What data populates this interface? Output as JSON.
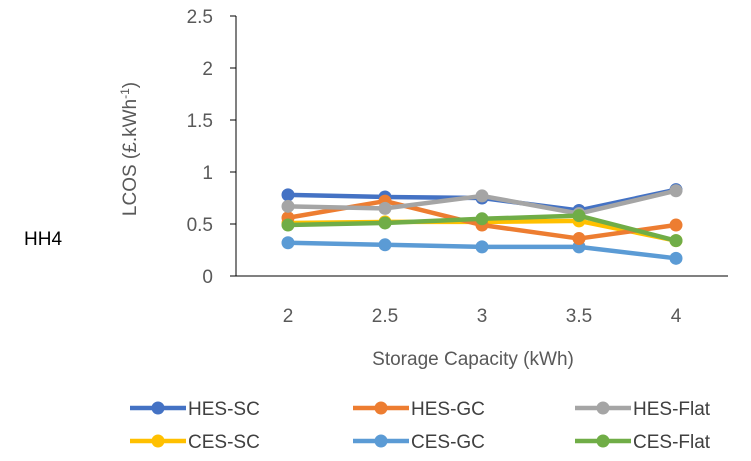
{
  "panel_label": "HH4",
  "chart_data": {
    "type": "line",
    "x": [
      2,
      2.5,
      3,
      3.5,
      4
    ],
    "x_tick_labels": [
      "2",
      "2.5",
      "3",
      "3.5",
      "4"
    ],
    "y_tick_labels": [
      "0",
      "0.5",
      "1",
      "1.5",
      "2",
      "2.5"
    ],
    "ylim": [
      0,
      2.5
    ],
    "xlabel": "Storage Capacity (kWh)",
    "ylabel": "LCOS (£.kWh",
    "ylabel_superscript": "-1",
    "ylabel_suffix": ")",
    "grid": false,
    "legend_position": "bottom",
    "series": [
      {
        "name": "HES-SC",
        "color": "#4472C4",
        "values": [
          0.78,
          0.76,
          0.75,
          0.63,
          0.83
        ]
      },
      {
        "name": "HES-GC",
        "color": "#ED7D31",
        "values": [
          0.56,
          0.72,
          0.49,
          0.36,
          0.49
        ]
      },
      {
        "name": "HES-Flat",
        "color": "#A5A5A5",
        "values": [
          0.67,
          0.65,
          0.77,
          0.6,
          0.82
        ]
      },
      {
        "name": "CES-SC",
        "color": "#FFC000",
        "values": [
          0.51,
          0.52,
          0.52,
          0.53,
          0.34
        ]
      },
      {
        "name": "CES-GC",
        "color": "#5B9BD5",
        "values": [
          0.32,
          0.3,
          0.28,
          0.28,
          0.17
        ]
      },
      {
        "name": "CES-Flat",
        "color": "#70AD47",
        "values": [
          0.49,
          0.51,
          0.55,
          0.58,
          0.34
        ]
      }
    ]
  }
}
